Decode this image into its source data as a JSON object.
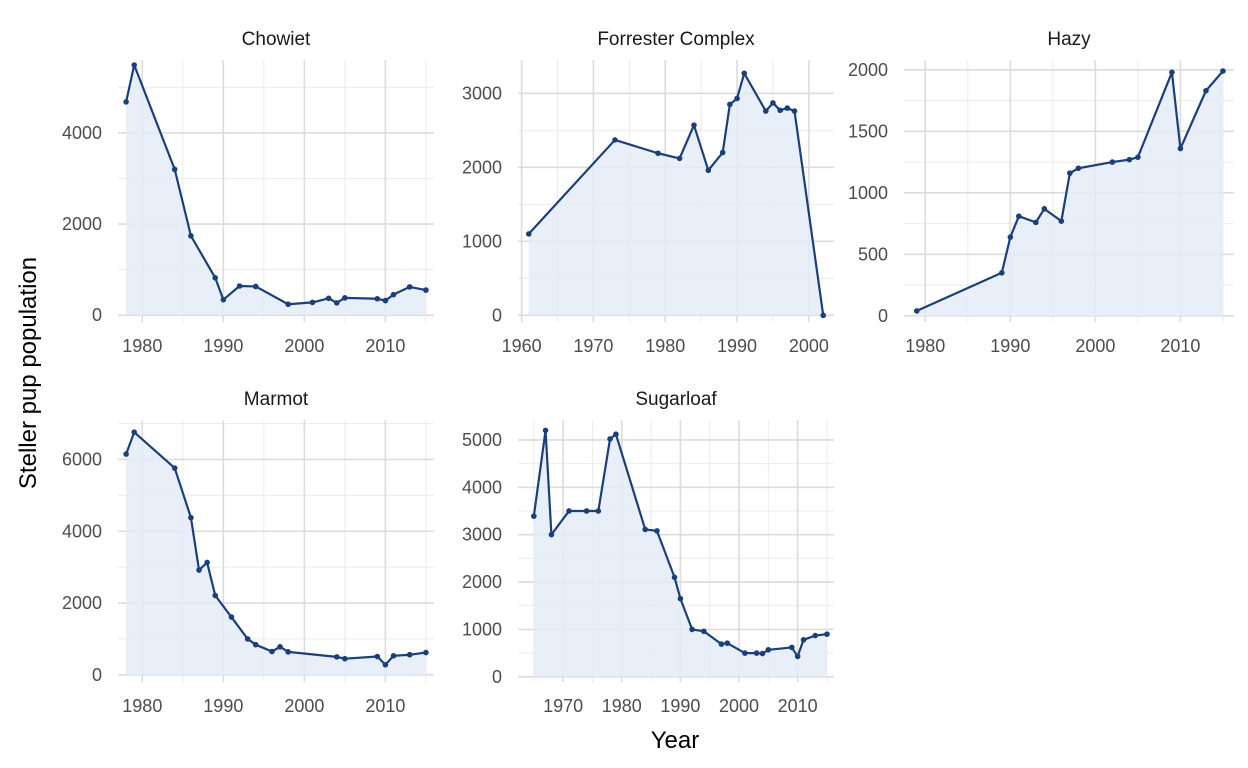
{
  "chart_data": {
    "type": "line",
    "facet": "wrap",
    "xlabel": "Year",
    "ylabel": "Steller pup population",
    "line_color": "#1a3f7a",
    "fill_color": "#e5ecf8",
    "grid": true,
    "panels": [
      {
        "name": "Chowiet",
        "xlim": [
          1977,
          2016
        ],
        "ylim": [
          -150,
          5600
        ],
        "xticks": [
          1980,
          1990,
          2000,
          2010
        ],
        "yticks": [
          0,
          2000,
          4000
        ],
        "x": [
          1978,
          1979,
          1984,
          1986,
          1989,
          1990,
          1992,
          1994,
          1998,
          2001,
          2003,
          2004,
          2005,
          2009,
          2010,
          2011,
          2013,
          2015
        ],
        "y": [
          4680,
          5490,
          3200,
          1740,
          820,
          340,
          640,
          630,
          240,
          280,
          370,
          270,
          380,
          360,
          320,
          450,
          620,
          550
        ]
      },
      {
        "name": "Forrester Complex",
        "xlim": [
          1959.5,
          2003.5
        ],
        "ylim": [
          -90,
          3450
        ],
        "xticks": [
          1960,
          1970,
          1980,
          1990,
          2000
        ],
        "yticks": [
          0,
          1000,
          2000,
          3000
        ],
        "x": [
          1961,
          1973,
          1979,
          1982,
          1984,
          1986,
          1988,
          1989,
          1990,
          1991,
          1994,
          1995,
          1996,
          1997,
          1998,
          2002
        ],
        "y": [
          1100,
          2370,
          2190,
          2120,
          2570,
          1960,
          2200,
          2850,
          2930,
          3270,
          2760,
          2870,
          2770,
          2800,
          2760,
          0
        ]
      },
      {
        "name": "Hazy",
        "xlim": [
          1977.5,
          2016.3
        ],
        "ylim": [
          -50,
          2080
        ],
        "xticks": [
          1980,
          1990,
          2000,
          2010
        ],
        "yticks": [
          0,
          500,
          1000,
          1500,
          2000
        ],
        "x": [
          1979,
          1989,
          1990,
          1991,
          1993,
          1994,
          1996,
          1997,
          1998,
          2002,
          2004,
          2005,
          2009,
          2010,
          2013,
          2015
        ],
        "y": [
          40,
          350,
          640,
          810,
          760,
          870,
          770,
          1160,
          1200,
          1250,
          1270,
          1290,
          1980,
          1360,
          1830,
          1990
        ]
      },
      {
        "name": "Marmot",
        "xlim": [
          1977,
          2016
        ],
        "ylim": [
          -200,
          7100
        ],
        "xticks": [
          1980,
          1990,
          2000,
          2010
        ],
        "yticks": [
          0,
          2000,
          4000,
          6000
        ],
        "x": [
          1978,
          1979,
          1984,
          1986,
          1987,
          1988,
          1989,
          1991,
          1993,
          1994,
          1996,
          1997,
          1998,
          2004,
          2005,
          2009,
          2010,
          2011,
          2013,
          2015
        ],
        "y": [
          6150,
          6760,
          5760,
          4380,
          2920,
          3130,
          2210,
          1610,
          1000,
          840,
          650,
          780,
          640,
          500,
          450,
          510,
          280,
          530,
          560,
          620
        ]
      },
      {
        "name": "Sugarloaf",
        "xlim": [
          1962.3,
          2016.2
        ],
        "ylim": [
          -110,
          5420
        ],
        "xticks": [
          1970,
          1980,
          1990,
          2000,
          2010
        ],
        "yticks": [
          0,
          1000,
          2000,
          3000,
          4000,
          5000
        ],
        "x": [
          1965,
          1967,
          1968,
          1971,
          1974,
          1976,
          1978,
          1979,
          1984,
          1986,
          1989,
          1990,
          1992,
          1994,
          1997,
          1998,
          2001,
          2003,
          2004,
          2005,
          2009,
          2010,
          2011,
          2013,
          2015
        ],
        "y": [
          3390,
          5200,
          3000,
          3500,
          3500,
          3500,
          5020,
          5120,
          3110,
          3080,
          2100,
          1650,
          1000,
          960,
          690,
          710,
          500,
          500,
          490,
          570,
          620,
          430,
          780,
          870,
          900
        ]
      }
    ]
  }
}
